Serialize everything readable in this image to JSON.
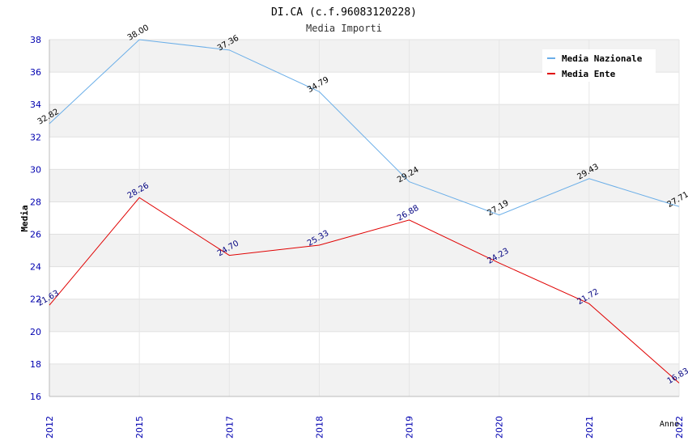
{
  "chart_data": {
    "type": "line",
    "title": "DI.CA (c.f.96083120228)",
    "subtitle": "Media Importi",
    "xlabel": "Anno",
    "ylabel": "Media",
    "categories": [
      "2012",
      "2015",
      "2017",
      "2018",
      "2019",
      "2020",
      "2021",
      "2022"
    ],
    "ylim": [
      16,
      38
    ],
    "yticks": [
      16,
      18,
      20,
      22,
      24,
      26,
      28,
      30,
      32,
      34,
      36,
      38
    ],
    "ytick_labels": [
      "16",
      "18",
      "20",
      "22",
      "24",
      "26",
      "28",
      "30",
      "32",
      "34",
      "36",
      "38"
    ],
    "grid": true,
    "legend_position": "top-right",
    "series": [
      {
        "name": "Media Nazionale",
        "color": "#6aaee8",
        "label_color": "#000000",
        "values": [
          32.82,
          38.0,
          37.36,
          34.79,
          29.24,
          27.19,
          29.43,
          27.71
        ],
        "labels": [
          "32.82",
          "38.00",
          "37.36",
          "34.79",
          "29.24",
          "27.19",
          "29.43",
          "27.71"
        ]
      },
      {
        "name": "Media Ente",
        "color": "#e00000",
        "label_color": "#000080",
        "values": [
          21.63,
          28.26,
          24.7,
          25.33,
          26.88,
          24.23,
          21.72,
          16.83
        ],
        "labels": [
          "21.63",
          "28.26",
          "24.70",
          "25.33",
          "26.88",
          "24.23",
          "21.72",
          "16.83"
        ]
      }
    ]
  }
}
